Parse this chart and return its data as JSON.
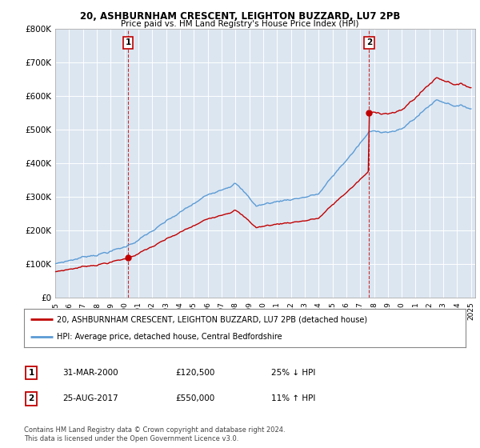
{
  "title_line1": "20, ASHBURNHAM CRESCENT, LEIGHTON BUZZARD, LU7 2PB",
  "title_line2": "Price paid vs. HM Land Registry's House Price Index (HPI)",
  "ylim": [
    0,
    800000
  ],
  "yticks": [
    0,
    100000,
    200000,
    300000,
    400000,
    500000,
    600000,
    700000,
    800000
  ],
  "ytick_labels": [
    "£0",
    "£100K",
    "£200K",
    "£300K",
    "£400K",
    "£500K",
    "£600K",
    "£700K",
    "£800K"
  ],
  "hpi_color": "#5b9bd5",
  "price_color": "#c00000",
  "chart_bg": "#dce6f1",
  "transaction1_date": 2000.25,
  "transaction1_price": 120500,
  "transaction2_date": 2017.65,
  "transaction2_price": 550000,
  "legend_line1": "20, ASHBURNHAM CRESCENT, LEIGHTON BUZZARD, LU7 2PB (detached house)",
  "legend_line2": "HPI: Average price, detached house, Central Bedfordshire",
  "table_row1_date": "31-MAR-2000",
  "table_row1_price": "£120,500",
  "table_row1_hpi": "25% ↓ HPI",
  "table_row2_date": "25-AUG-2017",
  "table_row2_price": "£550,000",
  "table_row2_hpi": "11% ↑ HPI",
  "footnote": "Contains HM Land Registry data © Crown copyright and database right 2024.\nThis data is licensed under the Open Government Licence v3.0.",
  "bg_color": "#ffffff",
  "grid_color": "#aaaaaa"
}
